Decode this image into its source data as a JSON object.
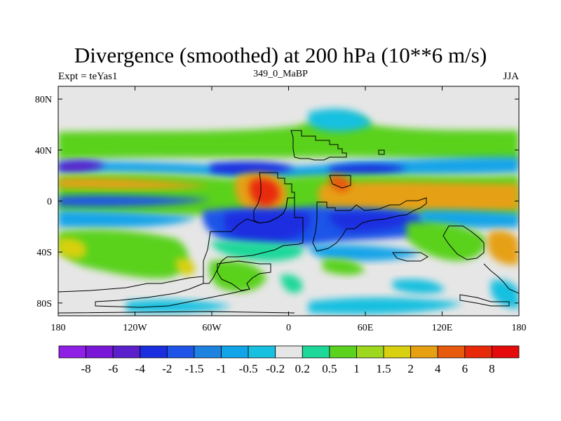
{
  "chart_data": {
    "type": "heatmap",
    "title": "Divergence (smoothed) at 200 hPa (10**6 m/s)",
    "subtitle_left": "Expt = teYas1",
    "subtitle_center": "349_0_MaBP",
    "subtitle_right": "JJA",
    "x_range": [
      -180,
      180
    ],
    "y_range": [
      -90,
      90
    ],
    "x_ticks": [
      {
        "value": -180,
        "label": "180"
      },
      {
        "value": -120,
        "label": "120W"
      },
      {
        "value": -60,
        "label": "60W"
      },
      {
        "value": 0,
        "label": "0"
      },
      {
        "value": 60,
        "label": "60E"
      },
      {
        "value": 120,
        "label": "120E"
      },
      {
        "value": 180,
        "label": "180"
      }
    ],
    "y_ticks": [
      {
        "value": 80,
        "label": "80N"
      },
      {
        "value": 40,
        "label": "40N"
      },
      {
        "value": 0,
        "label": "0"
      },
      {
        "value": -40,
        "label": "40S"
      },
      {
        "value": -80,
        "label": "80S"
      }
    ],
    "colorbar": {
      "levels": [
        "-8",
        "-6",
        "-4",
        "-2",
        "-1.5",
        "-1",
        "-0.5",
        "-0.2",
        "0.2",
        "0.5",
        "1",
        "1.5",
        "2",
        "4",
        "6",
        "8"
      ],
      "colors": [
        "#8f1ee6",
        "#7a16d8",
        "#5a20cc",
        "#1a2ee0",
        "#1e54e8",
        "#1e82e0",
        "#12a4e8",
        "#18c0e0",
        "#e6e6e6",
        "#1ed89a",
        "#5ad21e",
        "#9ed81e",
        "#d8d010",
        "#e6a012",
        "#e85a0c",
        "#e82a0a",
        "#e60a0a"
      ]
    },
    "colors": {
      "background": "#e6e6e6",
      "coastline": "#000000"
    }
  }
}
